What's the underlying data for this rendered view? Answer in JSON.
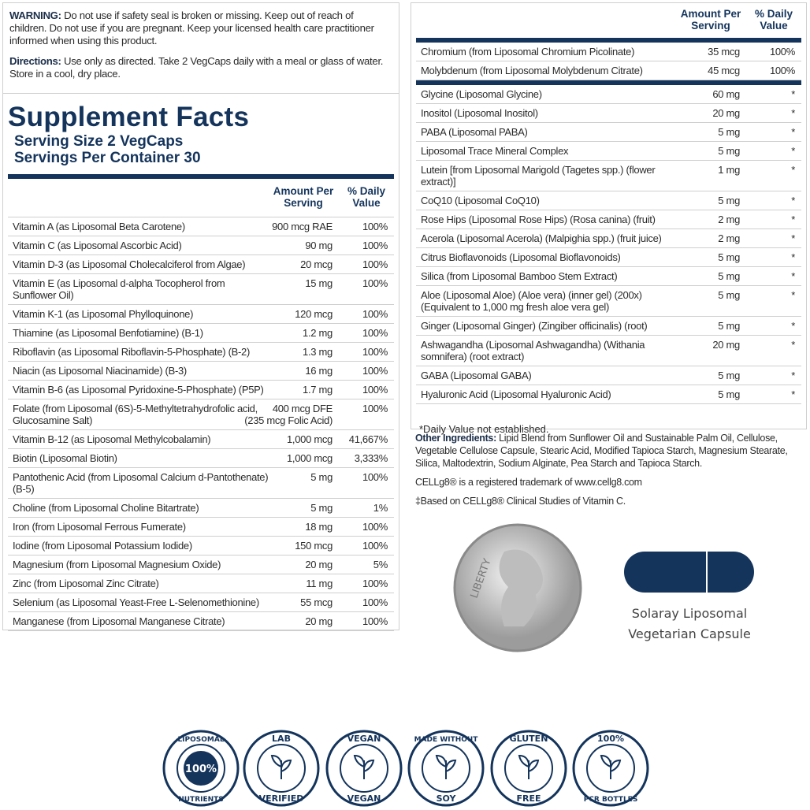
{
  "warning": {
    "label": "WARNING:",
    "text": "Do not use if safety seal is broken or missing. Keep out of reach of children. Do not use if you are pregnant. Keep your licensed health care practitioner informed when using this product."
  },
  "directions": {
    "label": "Directions:",
    "text": "Use only as directed. Take 2 VegCaps daily with a meal or glass of water. Store in a cool, dry place."
  },
  "facts": {
    "title": "Supplement Facts",
    "serving_size": "Serving Size 2 VegCaps",
    "servings": "Servings Per Container 30",
    "header_amount": "Amount Per Serving",
    "header_dv": "% Daily Value",
    "rows": [
      {
        "name": "Vitamin A (as Liposomal Beta Carotene)",
        "amount": "900 mcg RAE",
        "dv": "100%"
      },
      {
        "name": "Vitamin C (as Liposomal Ascorbic Acid)",
        "amount": "90 mg",
        "dv": "100%"
      },
      {
        "name": "Vitamin D-3 (as Liposomal Cholecalciferol from Algae)",
        "amount": "20 mcg",
        "dv": "100%"
      },
      {
        "name": "Vitamin E (as Liposomal d-alpha Tocopherol from Sunflower Oil)",
        "amount": "15 mg",
        "dv": "100%"
      },
      {
        "name": "Vitamin K-1 (as Liposomal Phylloquinone)",
        "amount": "120 mcg",
        "dv": "100%"
      },
      {
        "name": "Thiamine (as Liposomal Benfotiamine) (B-1)",
        "amount": "1.2 mg",
        "dv": "100%"
      },
      {
        "name": "Riboflavin (as Liposomal Riboflavin-5-Phosphate) (B-2)",
        "amount": "1.3 mg",
        "dv": "100%"
      },
      {
        "name": "Niacin (as Liposomal Niacinamide) (B-3)",
        "amount": "16 mg",
        "dv": "100%"
      },
      {
        "name": "Vitamin B-6 (as Liposomal Pyridoxine-5-Phosphate) (P5P)",
        "amount": "1.7 mg",
        "dv": "100%"
      },
      {
        "name": "Folate (from Liposomal (6S)-5-Methyltetrahydrofolic acid, Glucosamine Salt)",
        "amount": "400 mcg DFE",
        "amount_note": "(235 mcg Folic Acid)",
        "dv": "100%"
      },
      {
        "name": "Vitamin B-12 (as Liposomal Methylcobalamin)",
        "amount": "1,000 mcg",
        "dv": "41,667%"
      },
      {
        "name": "Biotin (Liposomal Biotin)",
        "amount": "1,000 mcg",
        "dv": "3,333%"
      },
      {
        "name": "Pantothenic Acid (from Liposomal Calcium d-Pantothenate) (B-5)",
        "amount": "5 mg",
        "dv": "100%"
      },
      {
        "name": "Choline (from Liposomal Choline Bitartrate)",
        "amount": "5 mg",
        "dv": "1%"
      },
      {
        "name": "Iron (from Liposomal Ferrous Fumerate)",
        "amount": "18 mg",
        "dv": "100%"
      },
      {
        "name": "Iodine (from Liposomal Potassium Iodide)",
        "amount": "150 mcg",
        "dv": "100%"
      },
      {
        "name": "Magnesium (from Liposomal Magnesium Oxide)",
        "amount": "20 mg",
        "dv": "5%"
      },
      {
        "name": "Zinc (from Liposomal Zinc Citrate)",
        "amount": "11 mg",
        "dv": "100%"
      },
      {
        "name": "Selenium (as Liposomal Yeast-Free L-Selenomethionine)",
        "amount": "55 mcg",
        "dv": "100%"
      },
      {
        "name": "Manganese (from Liposomal Manganese Citrate)",
        "amount": "20 mg",
        "dv": "100%"
      }
    ]
  },
  "facts_cont": {
    "header_amount": "Amount Per Serving",
    "header_dv": "% Daily Value",
    "rows_dv": [
      {
        "name": "Chromium (from Liposomal Chromium Picolinate)",
        "amount": "35 mcg",
        "dv": "100%"
      },
      {
        "name": "Molybdenum (from Liposomal Molybdenum Citrate)",
        "amount": "45 mcg",
        "dv": "100%"
      }
    ],
    "rows": [
      {
        "name": "Glycine (Liposomal Glycine)",
        "amount": "60 mg",
        "dv": "*"
      },
      {
        "name": "Inositol (Liposomal Inositol)",
        "amount": "20 mg",
        "dv": "*"
      },
      {
        "name": "PABA (Liposomal PABA)",
        "amount": "5 mg",
        "dv": "*"
      },
      {
        "name": "Liposomal Trace Mineral Complex",
        "amount": "5 mg",
        "dv": "*"
      },
      {
        "name": "Lutein [from Liposomal Marigold (Tagetes spp.) (flower extract)]",
        "amount": "1 mg",
        "dv": "*"
      },
      {
        "name": "CoQ10 (Liposomal CoQ10)",
        "amount": "5 mg",
        "dv": "*"
      },
      {
        "name": "Rose Hips (Liposomal Rose Hips) (Rosa canina) (fruit)",
        "amount": "2 mg",
        "dv": "*"
      },
      {
        "name": "Acerola (Liposomal Acerola) (Malpighia spp.) (fruit juice)",
        "amount": "2 mg",
        "dv": "*"
      },
      {
        "name": "Citrus Bioflavonoids (Liposomal Bioflavonoids)",
        "amount": "5 mg",
        "dv": "*"
      },
      {
        "name": "Silica (from Liposomal Bamboo Stem Extract)",
        "amount": "5 mg",
        "dv": "*"
      },
      {
        "name": "Aloe (Liposomal Aloe) (Aloe vera) (inner gel) (200x) (Equivalent to 1,000 mg fresh aloe vera gel)",
        "amount": "5 mg",
        "dv": "*"
      },
      {
        "name": "Ginger (Liposomal Ginger) (Zingiber officinalis) (root)",
        "amount": "5 mg",
        "dv": "*"
      },
      {
        "name": "Ashwagandha (Liposomal Ashwagandha) (Withania somnifera) (root extract)",
        "amount": "20 mg",
        "dv": "*"
      },
      {
        "name": "GABA (Liposomal GABA)",
        "amount": "5 mg",
        "dv": "*"
      },
      {
        "name": "Hyaluronic Acid (Liposomal Hyaluronic Acid)",
        "amount": "5 mg",
        "dv": "*"
      }
    ],
    "footnote": "*Daily Value not established."
  },
  "other": {
    "label": "Other Ingredients:",
    "text": "Lipid Blend from Sunflower Oil and Sustainable Palm Oil, Cellulose, Vegetable Cellulose Capsule, Stearic Acid, Modified Tapioca Starch, Magnesium Stearate, Silica, Maltodextrin, Sodium Alginate, Pea Starch and Tapioca Starch.",
    "trademark": "CELLg8® is a registered trademark of www.cellg8.com",
    "based": "‡Based on CELLg8® Clinical Studies of Vitamin C."
  },
  "coin": {
    "text": "LIBERTY"
  },
  "capsule": {
    "caption": "Solaray Liposomal Vegetarian Capsule"
  },
  "badges": [
    {
      "top": "LIPOSOMAL",
      "center": "100%",
      "bottom": "NUTRIENTS"
    },
    {
      "top": "LAB",
      "bottom": "VERIFIED"
    },
    {
      "top": "VEGAN",
      "bottom": "VEGAN"
    },
    {
      "top": "MADE WITHOUT",
      "bottom": "SOY"
    },
    {
      "top": "GLUTEN",
      "bottom": "FREE"
    },
    {
      "top": "100%",
      "bottom": "PCR BOTTLES"
    }
  ]
}
